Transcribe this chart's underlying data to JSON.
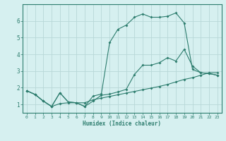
{
  "xlabel": "Humidex (Indice chaleur)",
  "bg_color": "#d6f0f0",
  "line_color": "#2d7d6e",
  "grid_color": "#b8d8d8",
  "xlim": [
    -0.5,
    23.5
  ],
  "ylim": [
    0.5,
    7.0
  ],
  "xticks": [
    0,
    1,
    2,
    3,
    4,
    5,
    6,
    7,
    8,
    9,
    10,
    11,
    12,
    13,
    14,
    15,
    16,
    17,
    18,
    19,
    20,
    21,
    22,
    23
  ],
  "yticks": [
    1,
    2,
    3,
    4,
    5,
    6
  ],
  "series1_x": [
    0,
    1,
    2,
    3,
    4,
    5,
    6,
    7,
    8,
    9,
    10,
    11,
    12,
    13,
    14,
    15,
    16,
    17,
    18,
    19,
    20,
    21,
    22,
    23
  ],
  "series1_y": [
    1.82,
    1.6,
    1.2,
    0.88,
    1.7,
    1.15,
    1.1,
    0.88,
    1.2,
    1.55,
    1.62,
    1.75,
    1.9,
    2.8,
    3.35,
    3.35,
    3.5,
    3.8,
    3.6,
    4.3,
    3.3,
    2.9,
    2.85,
    2.75
  ],
  "series2_x": [
    0,
    1,
    2,
    3,
    4,
    5,
    6,
    7,
    8,
    9,
    10,
    11,
    12,
    13,
    14,
    15,
    16,
    17,
    18,
    19,
    20,
    21,
    22,
    23
  ],
  "series2_y": [
    1.82,
    1.6,
    1.2,
    0.88,
    1.7,
    1.15,
    1.1,
    0.88,
    1.5,
    1.62,
    4.7,
    5.5,
    5.75,
    6.22,
    6.42,
    6.22,
    6.22,
    6.28,
    6.48,
    5.88,
    3.1,
    2.9,
    2.85,
    2.75
  ],
  "series3_x": [
    0,
    1,
    2,
    3,
    4,
    5,
    6,
    7,
    8,
    9,
    10,
    11,
    12,
    13,
    14,
    15,
    16,
    17,
    18,
    19,
    20,
    21,
    22,
    23
  ],
  "series3_y": [
    1.82,
    1.6,
    1.2,
    0.88,
    1.05,
    1.1,
    1.1,
    1.1,
    1.28,
    1.38,
    1.48,
    1.58,
    1.68,
    1.78,
    1.88,
    1.98,
    2.08,
    2.2,
    2.35,
    2.5,
    2.6,
    2.75,
    2.9,
    2.9
  ]
}
